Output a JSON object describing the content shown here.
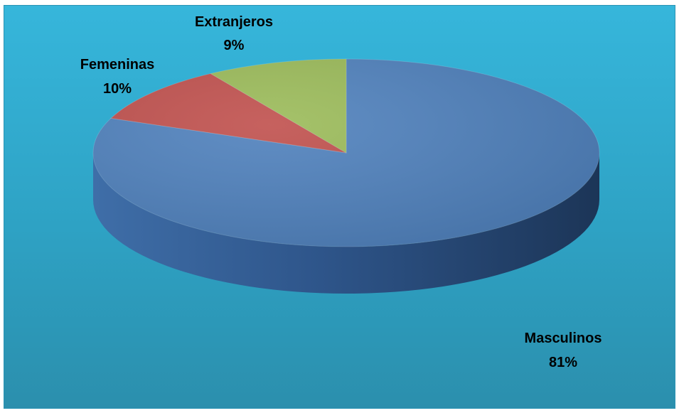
{
  "chart_data": {
    "type": "pie",
    "style": "3d",
    "title": "",
    "background_color": "#33b0d6",
    "slices": [
      {
        "label": "Masculinos",
        "value": 81,
        "value_label": "81%",
        "color": "#4f81bd"
      },
      {
        "label": "Femeninas",
        "value": 10,
        "value_label": "10%",
        "color": "#c0504d"
      },
      {
        "label": "Extranjeros",
        "value": 9,
        "value_label": "9%",
        "color": "#9bbb59"
      }
    ]
  }
}
